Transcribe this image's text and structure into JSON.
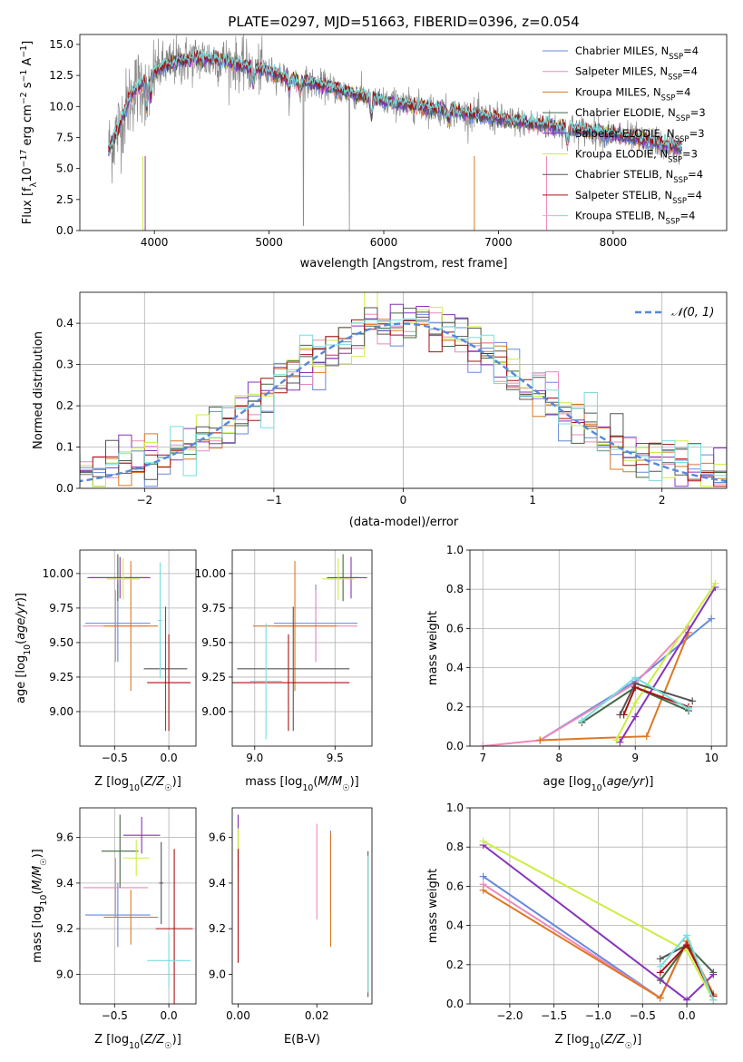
{
  "figure_title": "PLATE=0297, MJD=51663, FIBERID=0396, z=0.054",
  "series_colors": [
    "#6688dd",
    "#ee88bb",
    "#dd7722",
    "#446644",
    "#8833bb",
    "#ccee44",
    "#555555",
    "#aa1111",
    "#77dddd"
  ],
  "chart_data": [
    {
      "id": "spectrum",
      "type": "line",
      "title": "PLATE=0297, MJD=51663, FIBERID=0396, z=0.054",
      "xlabel": "wavelength [Angstrom, rest frame]",
      "ylabel": "Flux [f_λ10^-17 erg cm^-2 s^-1 A^-1]",
      "xlim": [
        3350,
        8990
      ],
      "ylim": [
        0,
        15.8
      ],
      "xticks": [
        4000,
        5000,
        6000,
        7000,
        8000
      ],
      "yticks": [
        0.0,
        2.5,
        5.0,
        7.5,
        10.0,
        12.5,
        15.0
      ],
      "grid": false,
      "legend_position": "upper right",
      "legend": [
        {
          "base": "Chabrier MILES, N",
          "sub": "SSP",
          "tail": "=4"
        },
        {
          "base": "Salpeter MILES, N",
          "sub": "SSP",
          "tail": "=4"
        },
        {
          "base": "Kroupa MILES, N",
          "sub": "SSP",
          "tail": "=4"
        },
        {
          "base": "Chabrier ELODIE, N",
          "sub": "SSP",
          "tail": "=3"
        },
        {
          "base": "Salpeter ELODIE, N",
          "sub": "SSP",
          "tail": "=3"
        },
        {
          "base": "Kroupa ELODIE, N",
          "sub": "SSP",
          "tail": "=3"
        },
        {
          "base": "Chabrier STELIB, N",
          "sub": "SSP",
          "tail": "=4"
        },
        {
          "base": "Salpeter STELIB, N",
          "sub": "SSP",
          "tail": "=4"
        },
        {
          "base": "Kroupa STELIB, N",
          "sub": "SSP",
          "tail": "=4"
        }
      ],
      "data_color": "#888888",
      "continuum": {
        "x": [
          3600,
          3700,
          3800,
          3900,
          4000,
          4100,
          4200,
          4400,
          4600,
          4800,
          5000,
          5200,
          5500,
          5800,
          6000,
          6300,
          6600,
          7000,
          7400,
          7800,
          8200,
          8600
        ],
        "y": [
          6.5,
          8.5,
          11.0,
          12.0,
          12.8,
          13.3,
          13.6,
          13.9,
          13.7,
          13.2,
          12.8,
          12.2,
          11.6,
          10.9,
          10.4,
          10.0,
          9.6,
          9.0,
          8.5,
          8.0,
          7.4,
          6.6
        ]
      }
    },
    {
      "id": "residuals",
      "type": "line",
      "xlabel": "(data-model)/error",
      "ylabel": "Normed distribution",
      "xlim": [
        -2.5,
        2.5
      ],
      "ylim": [
        0,
        0.475
      ],
      "xticks": [
        -2,
        -1,
        0,
        1,
        2
      ],
      "yticks": [
        0.0,
        0.1,
        0.2,
        0.3,
        0.4
      ],
      "grid": true,
      "legend_position": "upper right",
      "legend": [
        "𝒩(0, 1)"
      ],
      "gaussian": {
        "mean": 0,
        "sigma": 1
      }
    },
    {
      "id": "age_vs_Z",
      "type": "scatter",
      "xlabel": "Z [log10(Z/Z☉)]",
      "ylabel": "age [log10(age/yr)]",
      "xlim": [
        -0.82,
        0.25
      ],
      "ylim": [
        8.75,
        10.17
      ],
      "xticks": [
        -0.5,
        0.0
      ],
      "yticks": [
        9.0,
        9.25,
        9.5,
        9.75,
        10.0
      ],
      "grid": true,
      "points": [
        {
          "s": 0,
          "x": -0.47,
          "y": 9.64,
          "dx": 0.3,
          "dy": 0.28
        },
        {
          "s": 1,
          "x": -0.49,
          "y": 9.62,
          "dx": 0.3,
          "dy": 0.26
        },
        {
          "s": 2,
          "x": -0.35,
          "y": 9.62,
          "dx": 0.25,
          "dy": 0.47
        },
        {
          "s": 3,
          "x": -0.47,
          "y": 9.97,
          "dx": 0.28,
          "dy": 0.17
        },
        {
          "s": 4,
          "x": -0.45,
          "y": 9.97,
          "dx": 0.28,
          "dy": 0.15
        },
        {
          "s": 5,
          "x": -0.42,
          "y": 9.96,
          "dx": 0.15,
          "dy": 0.15
        },
        {
          "s": 6,
          "x": -0.03,
          "y": 9.31,
          "dx": 0.2,
          "dy": 0.45
        },
        {
          "s": 7,
          "x": 0.0,
          "y": 9.21,
          "dx": 0.2,
          "dy": 0.35
        },
        {
          "s": 8,
          "x": -0.08,
          "y": 9.66,
          "dx": 0.02,
          "dy": 0.42
        }
      ]
    },
    {
      "id": "age_vs_mass",
      "type": "scatter",
      "xlabel": "mass [log10(M/M☉)]",
      "ylabel": "",
      "xlim": [
        8.86,
        9.73
      ],
      "ylim": [
        8.75,
        10.17
      ],
      "xticks": [
        9.0,
        9.5
      ],
      "yticks": [
        9.0,
        9.25,
        9.5,
        9.75,
        10.0
      ],
      "grid": true,
      "points": [
        {
          "s": 0,
          "x": 9.38,
          "y": 9.64,
          "dx": 0.26,
          "dy": 0.28
        },
        {
          "s": 1,
          "x": 9.38,
          "y": 9.62,
          "dx": 0.26,
          "dy": 0.26
        },
        {
          "s": 2,
          "x": 9.25,
          "y": 9.62,
          "dx": 0.26,
          "dy": 0.47
        },
        {
          "s": 3,
          "x": 9.55,
          "y": 9.97,
          "dx": 0.1,
          "dy": 0.17
        },
        {
          "s": 4,
          "x": 9.6,
          "y": 9.97,
          "dx": 0.1,
          "dy": 0.15
        },
        {
          "s": 5,
          "x": 9.52,
          "y": 9.96,
          "dx": 0.1,
          "dy": 0.15
        },
        {
          "s": 6,
          "x": 9.24,
          "y": 9.31,
          "dx": 0.35,
          "dy": 0.45
        },
        {
          "s": 7,
          "x": 9.21,
          "y": 9.21,
          "dx": 0.38,
          "dy": 0.35
        },
        {
          "s": 8,
          "x": 9.07,
          "y": 9.22,
          "dx": 0.1,
          "dy": 0.42
        }
      ]
    },
    {
      "id": "massweight_vs_age",
      "type": "line",
      "xlabel": "age [log10(age/yr)]",
      "ylabel": "mass weight",
      "xlim": [
        6.83,
        10.2
      ],
      "ylim": [
        0,
        1
      ],
      "xticks": [
        7,
        8,
        9,
        10
      ],
      "yticks": [
        0.0,
        0.2,
        0.4,
        0.6,
        0.8,
        1.0
      ],
      "grid": true,
      "series": [
        {
          "s": 0,
          "x": [
            7.75,
            9.0,
            10.0
          ],
          "y": [
            0.03,
            0.33,
            0.65
          ]
        },
        {
          "s": 1,
          "x": [
            7.0,
            7.75,
            9.0,
            9.7
          ],
          "y": [
            0.0,
            0.03,
            0.32,
            0.61
          ]
        },
        {
          "s": 2,
          "x": [
            7.75,
            9.15,
            9.7
          ],
          "y": [
            0.03,
            0.05,
            0.58
          ]
        },
        {
          "s": 3,
          "x": [
            8.3,
            9.0,
            9.7
          ],
          "y": [
            0.12,
            0.3,
            0.18
          ]
        },
        {
          "s": 4,
          "x": [
            8.8,
            9.0,
            10.05
          ],
          "y": [
            0.02,
            0.15,
            0.81
          ]
        },
        {
          "s": 5,
          "x": [
            8.75,
            9.0,
            10.05
          ],
          "y": [
            0.03,
            0.22,
            0.83
          ]
        },
        {
          "s": 6,
          "x": [
            8.8,
            9.0,
            9.75
          ],
          "y": [
            0.16,
            0.32,
            0.23
          ]
        },
        {
          "s": 7,
          "x": [
            8.85,
            9.0,
            9.7
          ],
          "y": [
            0.16,
            0.3,
            0.2
          ]
        },
        {
          "s": 8,
          "x": [
            8.3,
            9.0,
            9.7
          ],
          "y": [
            0.13,
            0.35,
            0.19
          ]
        }
      ]
    },
    {
      "id": "mass_vs_Z",
      "type": "scatter",
      "xlabel": "Z [log10(Z/Z☉)]",
      "ylabel": "mass [log10(M/M☉)]",
      "xlim": [
        -0.82,
        0.25
      ],
      "ylim": [
        8.87,
        9.73
      ],
      "xticks": [
        -0.5,
        0.0
      ],
      "yticks": [
        9.0,
        9.2,
        9.4,
        9.6
      ],
      "grid": true,
      "points": [
        {
          "s": 0,
          "x": -0.47,
          "y": 9.26,
          "dx": 0.3,
          "dy": 0.14
        },
        {
          "s": 1,
          "x": -0.49,
          "y": 9.38,
          "dx": 0.3,
          "dy": 0.13
        },
        {
          "s": 2,
          "x": -0.35,
          "y": 9.25,
          "dx": 0.25,
          "dy": 0.12
        },
        {
          "s": 3,
          "x": -0.45,
          "y": 9.54,
          "dx": 0.17,
          "dy": 0.16
        },
        {
          "s": 4,
          "x": -0.25,
          "y": 9.61,
          "dx": 0.17,
          "dy": 0.08
        },
        {
          "s": 5,
          "x": -0.3,
          "y": 9.51,
          "dx": 0.12,
          "dy": 0.08
        },
        {
          "s": 6,
          "x": -0.07,
          "y": 9.4,
          "dx": 0.02,
          "dy": 0.18
        },
        {
          "s": 7,
          "x": 0.05,
          "y": 9.2,
          "dx": 0.17,
          "dy": 0.35
        },
        {
          "s": 8,
          "x": 0.0,
          "y": 9.06,
          "dx": 0.2,
          "dy": 0.12
        }
      ]
    },
    {
      "id": "mass_vs_EBV",
      "type": "scatter",
      "xlabel": "E(B-V)",
      "ylabel": "",
      "xlim": [
        -0.0015,
        0.034
      ],
      "ylim": [
        8.87,
        9.73
      ],
      "xticks": [
        0.0,
        0.02
      ],
      "yticks": [
        9.0,
        9.2,
        9.4,
        9.6
      ],
      "grid": false,
      "points": [
        {
          "s": 0,
          "x": 0.0235,
          "y": 9.45,
          "dx": 0,
          "dy": 0.18
        },
        {
          "s": 1,
          "x": 0.02,
          "y": 9.45,
          "dx": 0,
          "dy": 0.21
        },
        {
          "s": 2,
          "x": 0.0235,
          "y": 9.37,
          "dx": 0,
          "dy": 0.25
        },
        {
          "s": 3,
          "x": 0.0,
          "y": 9.55,
          "dx": 0,
          "dy": 0.15
        },
        {
          "s": 4,
          "x": 0.0,
          "y": 9.58,
          "dx": 0,
          "dy": 0.12
        },
        {
          "s": 5,
          "x": 0.0,
          "y": 9.5,
          "dx": 0,
          "dy": 0.14
        },
        {
          "s": 6,
          "x": 0.033,
          "y": 9.22,
          "dx": 0,
          "dy": 0.32
        },
        {
          "s": 7,
          "x": 0.0,
          "y": 9.3,
          "dx": 0,
          "dy": 0.25
        },
        {
          "s": 8,
          "x": 0.033,
          "y": 9.22,
          "dx": 0,
          "dy": 0.3
        }
      ]
    },
    {
      "id": "massweight_vs_Z",
      "type": "line",
      "xlabel": "Z [log10(Z/Z☉)]",
      "ylabel": "mass weight",
      "xlim": [
        -2.45,
        0.45
      ],
      "ylim": [
        0,
        1
      ],
      "xticks": [
        -2.0,
        -1.5,
        -1.0,
        -0.5,
        0.0
      ],
      "yticks": [
        0.0,
        0.2,
        0.4,
        0.6,
        0.8,
        1.0
      ],
      "grid": true,
      "series": [
        {
          "s": 0,
          "x": [
            -2.3,
            -0.3,
            0.0
          ],
          "y": [
            0.65,
            0.03,
            0.32
          ]
        },
        {
          "s": 1,
          "x": [
            -2.3,
            -0.3,
            0.0,
            0.3
          ],
          "y": [
            0.61,
            0.03,
            0.32,
            0.02
          ]
        },
        {
          "s": 2,
          "x": [
            -2.3,
            -0.3,
            0.0,
            0.3
          ],
          "y": [
            0.58,
            0.03,
            0.32,
            0.05
          ]
        },
        {
          "s": 3,
          "x": [
            -0.3,
            0.0,
            0.3
          ],
          "y": [
            0.12,
            0.3,
            0.16
          ]
        },
        {
          "s": 4,
          "x": [
            -2.3,
            0.0,
            0.3
          ],
          "y": [
            0.81,
            0.02,
            0.15
          ]
        },
        {
          "s": 5,
          "x": [
            -2.3,
            0.0,
            0.3
          ],
          "y": [
            0.83,
            0.27,
            0.02
          ]
        },
        {
          "s": 6,
          "x": [
            -0.3,
            0.0,
            0.3
          ],
          "y": [
            0.23,
            0.3,
            0.04
          ]
        },
        {
          "s": 7,
          "x": [
            -0.3,
            0.0,
            0.3
          ],
          "y": [
            0.16,
            0.3,
            0.04
          ]
        },
        {
          "s": 8,
          "x": [
            -0.3,
            0.0,
            0.3
          ],
          "y": [
            0.19,
            0.35,
            0.02
          ]
        }
      ]
    }
  ]
}
